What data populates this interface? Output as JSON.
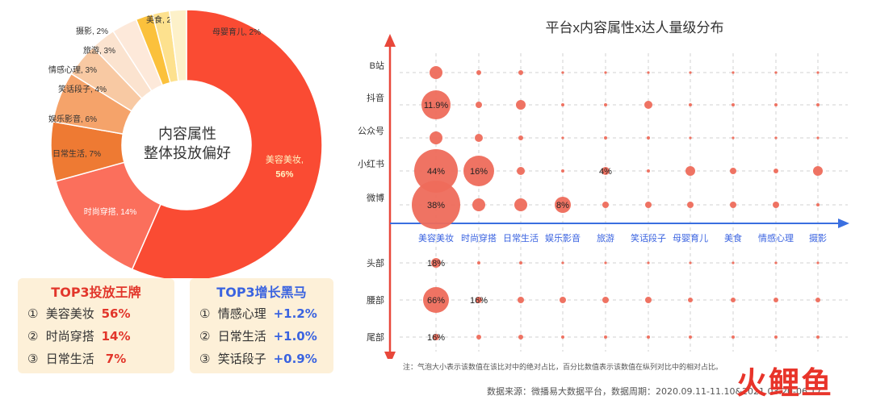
{
  "colors": {
    "accent_red": "#e2362b",
    "accent_blue": "#3a63e0",
    "bubble": "#ee6b5b",
    "axis_vertical": "#e8473a",
    "axis_horizontal": "#3a6fe0",
    "card_bg": "#fdf0d8"
  },
  "donut": {
    "center_line1": "内容属性",
    "center_line2": "整体投放偏好"
  },
  "top3_brands": {
    "title": "TOP3投放王牌",
    "rows": [
      {
        "num": "①",
        "label": "美容美妆",
        "value": "56%"
      },
      {
        "num": "②",
        "label": "时尚穿搭",
        "value": "14%"
      },
      {
        "num": "③",
        "label": "日常生活",
        "value": " 7%"
      }
    ]
  },
  "top3_growth": {
    "title": "TOP3增长黑马",
    "rows": [
      {
        "num": "①",
        "label": "情感心理",
        "value": "+1.2%"
      },
      {
        "num": "②",
        "label": "日常生活",
        "value": "+1.0%"
      },
      {
        "num": "③",
        "label": "笑话段子",
        "value": "+0.9%"
      }
    ]
  },
  "footnote": "注：气泡大小表示该数值在该比对中的绝对占比，百分比数值表示该数值在纵列对比中的相对占比。",
  "source": "数据来源：微播易大数据平台，数据周期：2020.09.11-11.10&2021.03.20-06.17",
  "brand_logo": "火鲤鱼",
  "chart_data": [
    {
      "type": "pie",
      "title": "",
      "center_text": [
        "内容属性",
        "整体投放偏好"
      ],
      "slices": [
        {
          "label": "美容美妆",
          "value": 56,
          "color": "#fa4b33",
          "text": "美容美妆, 56%"
        },
        {
          "label": "时尚穿搭",
          "value": 14,
          "color": "#fb6f5c",
          "text": "时尚穿搭, 14%"
        },
        {
          "label": "日常生活",
          "value": 7,
          "color": "#ee7a33",
          "text": "日常生活, 7%"
        },
        {
          "label": "娱乐影音",
          "value": 6,
          "color": "#f5a36a",
          "text": "娱乐影音, 6%"
        },
        {
          "label": "笑话段子",
          "value": 4,
          "color": "#f8c9a3",
          "text": "笑话段子, 4%"
        },
        {
          "label": "情感心理",
          "value": 3,
          "color": "#fbe3cf",
          "text": "情感心理, 3%"
        },
        {
          "label": "旅游",
          "value": 3,
          "color": "#fde9da",
          "text": "旅游, 3%"
        },
        {
          "label": "摄影",
          "value": 2,
          "color": "#fbc13c",
          "text": "摄影, 2%"
        },
        {
          "label": "美食",
          "value": 2,
          "color": "#fde18e",
          "text": "美食, 2%"
        },
        {
          "label": "母婴育儿",
          "value": 2,
          "color": "#fdf1c9",
          "text": "母婴育儿, 2%"
        }
      ]
    },
    {
      "type": "scatter",
      "title": "平台x内容属性x达人量级分布",
      "categories": [
        "美容美妆",
        "时尚穿搭",
        "日常生活",
        "娱乐影音",
        "旅游",
        "笑话段子",
        "母婴育儿",
        "美食",
        "情感心理",
        "摄影"
      ],
      "rows_top": [
        "B站",
        "抖音",
        "公众号",
        "小红书",
        "微博"
      ],
      "rows_bottom": [
        "头部",
        "腰部",
        "尾部"
      ],
      "matrix_top": [
        [
          8,
          3,
          3,
          1,
          1,
          1,
          1,
          1,
          1,
          1
        ],
        [
          18,
          4,
          6,
          2,
          2,
          5,
          2,
          2,
          2,
          2
        ],
        [
          8,
          5,
          3,
          1,
          2,
          2,
          1,
          1,
          1,
          1
        ],
        [
          27,
          19,
          5,
          2,
          5,
          2,
          6,
          4,
          3,
          6
        ],
        [
          30,
          8,
          8,
          10,
          4,
          4,
          4,
          4,
          4,
          2
        ]
      ],
      "labels_top": [
        [
          "",
          "",
          "",
          "",
          "",
          "",
          "",
          "",
          "",
          ""
        ],
        [
          "11.9%",
          "",
          "",
          "",
          "",
          "",
          "",
          "",
          "",
          ""
        ],
        [
          "",
          "",
          "",
          "",
          "",
          "",
          "",
          "",
          "",
          ""
        ],
        [
          "44%",
          "16%",
          "",
          "",
          "4%",
          "",
          "",
          "",
          "",
          ""
        ],
        [
          "38%",
          "",
          "",
          "8%",
          "",
          "",
          "",
          "",
          "",
          ""
        ]
      ],
      "matrix_bottom": [
        [
          6,
          2,
          2,
          1,
          1,
          1,
          1,
          1,
          1,
          1
        ],
        [
          16,
          4,
          4,
          4,
          4,
          4,
          3,
          3,
          3,
          3
        ],
        [
          4,
          3,
          3,
          2,
          2,
          2,
          2,
          2,
          2,
          2
        ]
      ],
      "labels_bottom": [
        [
          "18%",
          "",
          "",
          "",
          "",
          "",
          "",
          "",
          "",
          ""
        ],
        [
          "66%",
          "16%",
          "",
          "",
          "",
          "",
          "",
          "",
          "",
          ""
        ],
        [
          "16%",
          "",
          "",
          "",
          "",
          "",
          "",
          "",
          "",
          ""
        ]
      ]
    }
  ]
}
